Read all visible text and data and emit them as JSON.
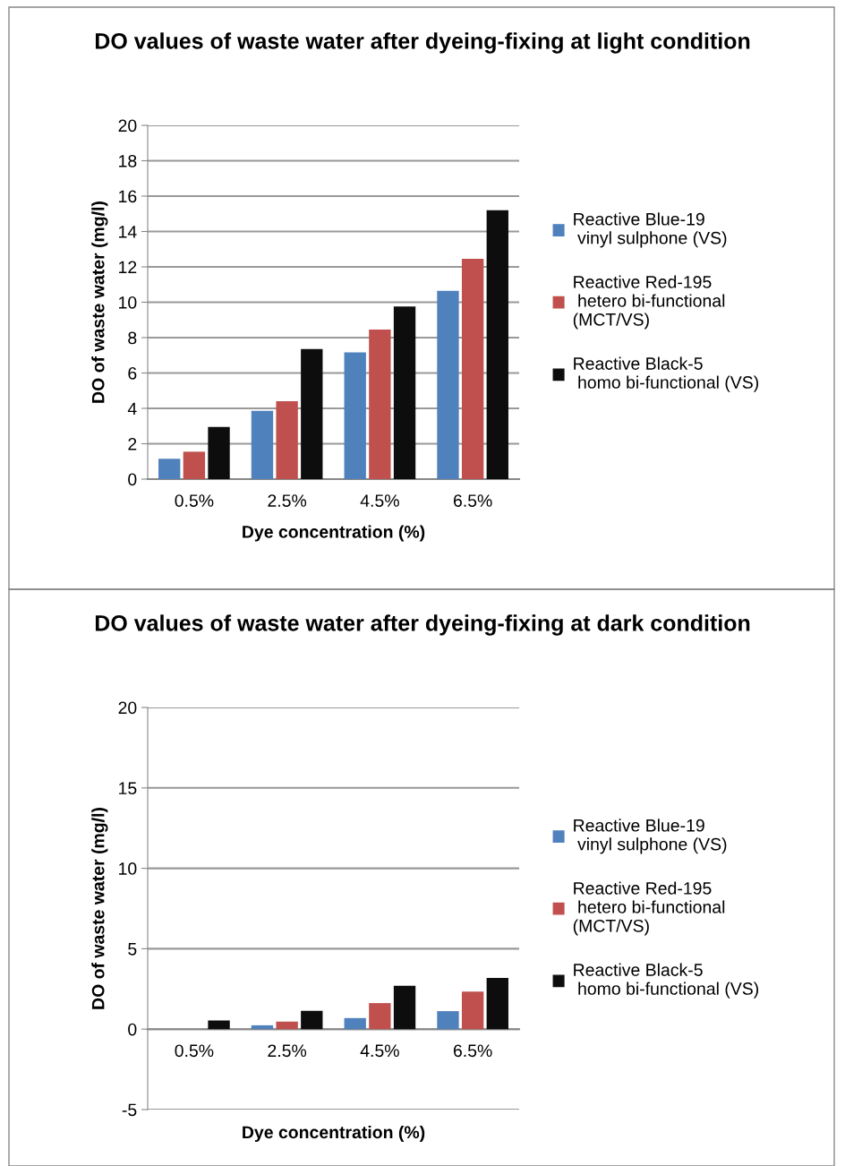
{
  "chart_data": [
    {
      "type": "bar",
      "title": "DO values of waste water after dyeing-fixing at light condition",
      "xlabel": "Dye concentration (%)",
      "ylabel": "DO of waste water (mg/l)",
      "categories": [
        "0.5%",
        "2.5%",
        "4.5%",
        "6.5%"
      ],
      "series": [
        {
          "name": "Reactive Blue-19\n vinyl sulphone (VS)",
          "color": "#4f81bd",
          "values": [
            1.15,
            3.86,
            7.16,
            10.65
          ]
        },
        {
          "name": "Reactive Red-195\n hetero bi-functional\n(MCT/VS)",
          "color": "#c0504d",
          "values": [
            1.55,
            4.4,
            8.46,
            12.46
          ]
        },
        {
          "name": "Reactive Black-5\n homo bi-functional (VS)",
          "color": "#0d0d0d",
          "values": [
            2.95,
            7.36,
            9.76,
            15.2
          ]
        }
      ],
      "ylim": [
        0,
        20
      ],
      "yticks": [
        0,
        2,
        4,
        6,
        8,
        10,
        12,
        14,
        16,
        18,
        20
      ],
      "grid": "y",
      "legend": "right"
    },
    {
      "type": "bar",
      "title": "DO values of waste water after dyeing-fixing at dark condition",
      "xlabel": "Dye concentration (%)",
      "ylabel": "DO of waste water (mg/l)",
      "categories": [
        "0.5%",
        "2.5%",
        "4.5%",
        "6.5%"
      ],
      "series": [
        {
          "name": "Reactive Blue-19\n vinyl sulphone (VS)",
          "color": "#4f81bd",
          "values": [
            0,
            0.24,
            0.69,
            1.12
          ]
        },
        {
          "name": "Reactive Red-195\n hetero bi-functional\n(MCT/VS)",
          "color": "#c0504d",
          "values": [
            0,
            0.47,
            1.62,
            2.33
          ]
        },
        {
          "name": "Reactive Black-5\n homo bi-functional (VS)",
          "color": "#0d0d0d",
          "values": [
            0.54,
            1.14,
            2.7,
            3.19
          ]
        }
      ],
      "ylim": [
        -5,
        20
      ],
      "yticks": [
        -5,
        0,
        5,
        10,
        15,
        20
      ],
      "grid": "y",
      "legend": "right"
    }
  ]
}
